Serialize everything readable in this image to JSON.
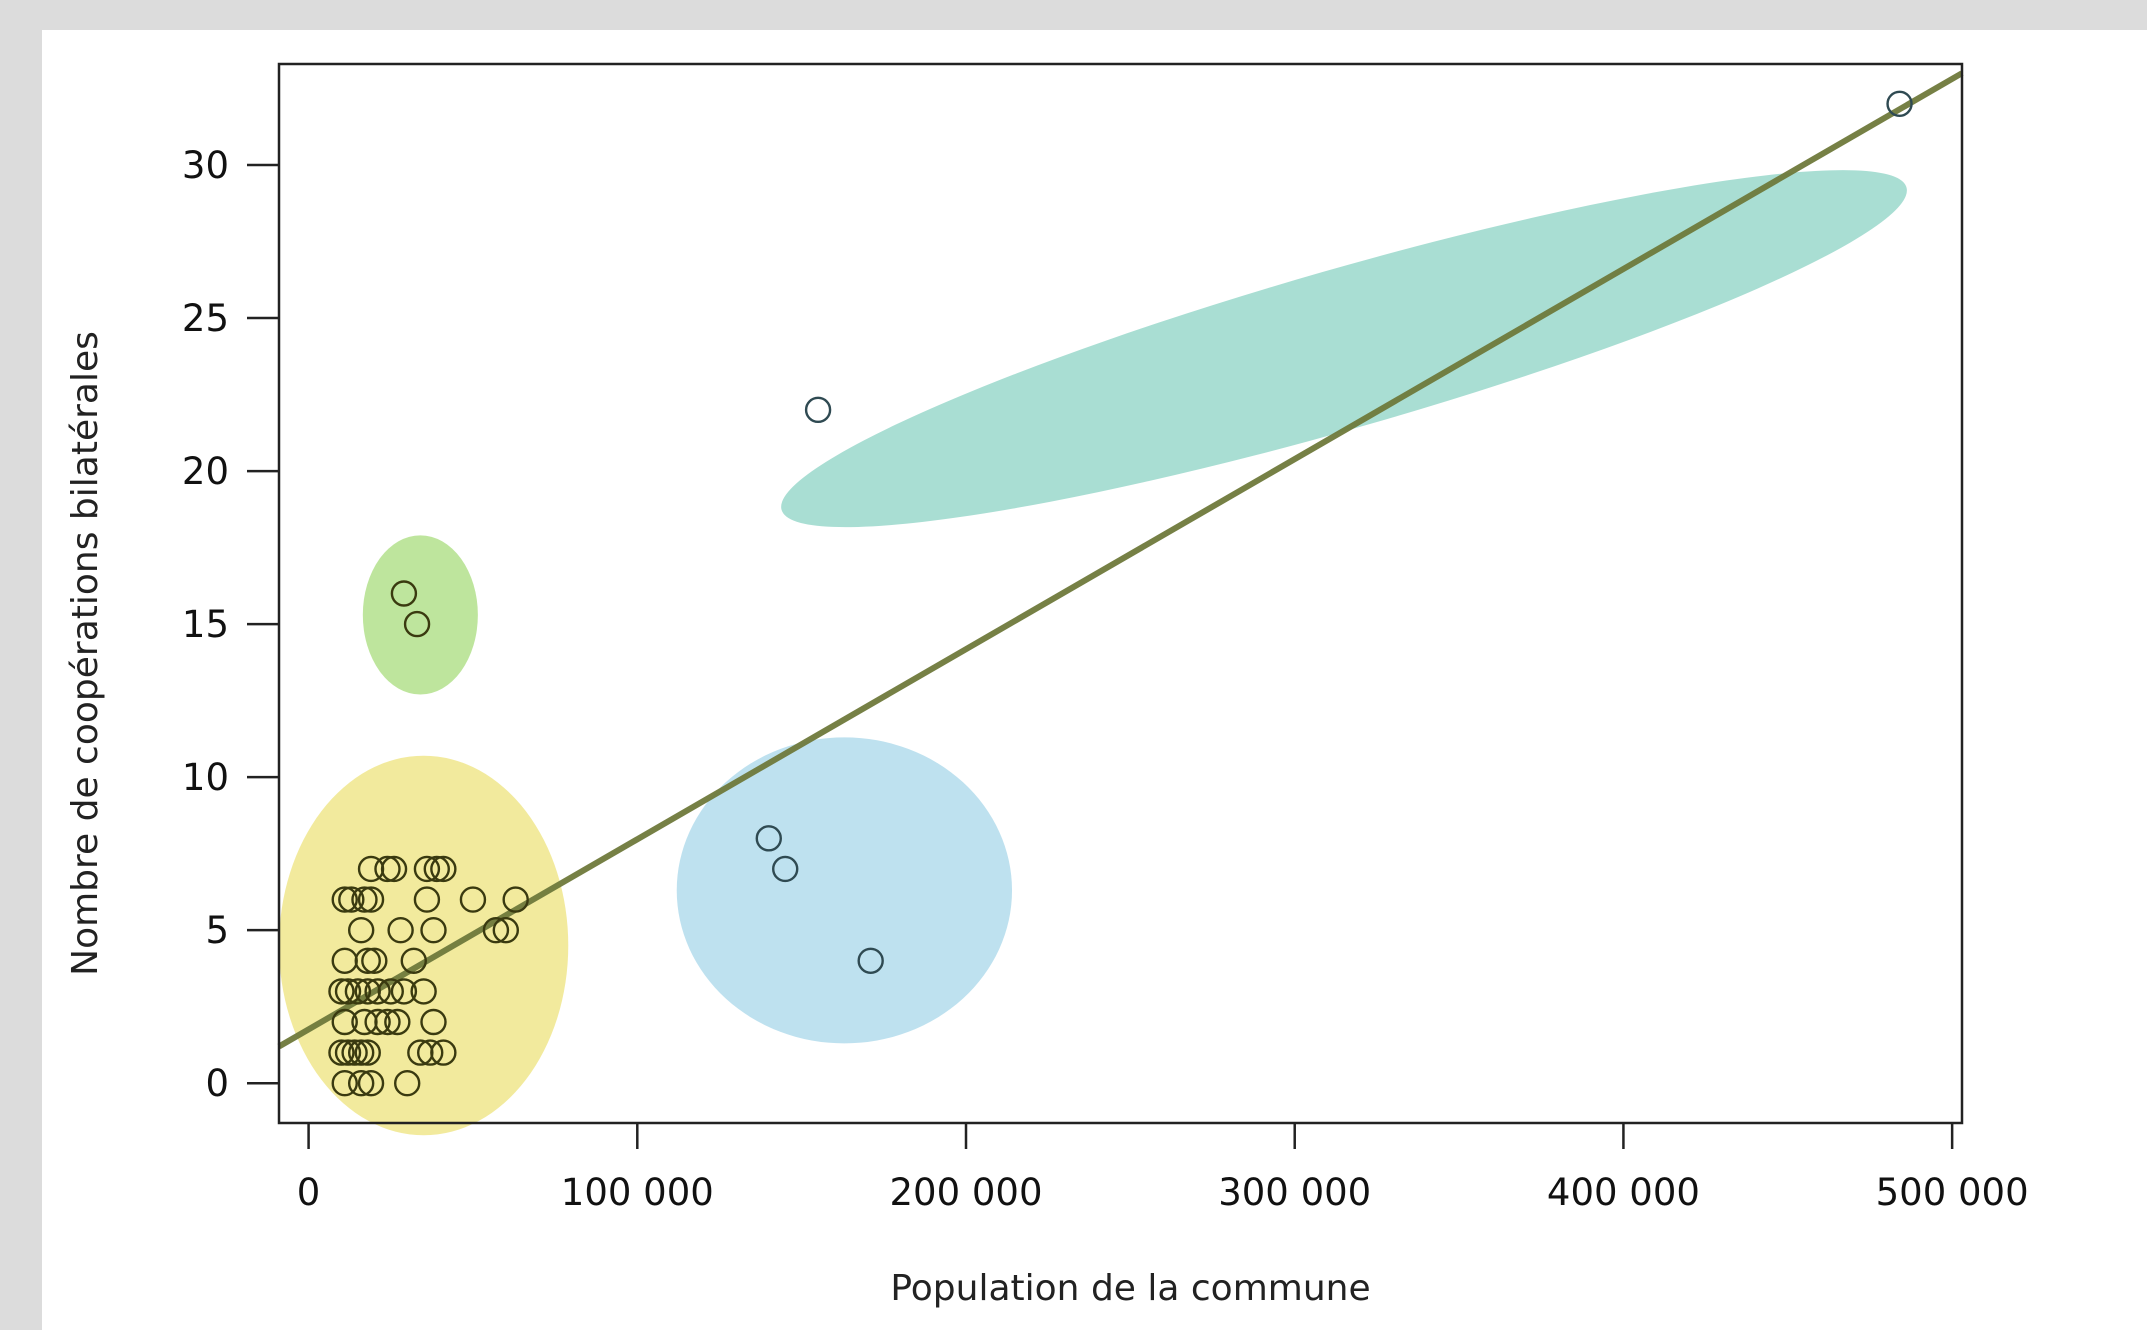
{
  "chart_data": {
    "type": "scatter",
    "title": "",
    "xlabel": "Population de la commune",
    "ylabel": "Nombre de coopérations bilatérales",
    "xlim": [
      -9000,
      503000
    ],
    "ylim": [
      -1.3,
      33.3
    ],
    "x_ticks": [
      0,
      100000,
      200000,
      300000,
      400000,
      500000
    ],
    "x_tick_labels": [
      "0",
      "100 000",
      "200 000",
      "300 000",
      "400 000",
      "500 000"
    ],
    "y_ticks": [
      0,
      5,
      10,
      15,
      20,
      25,
      30
    ],
    "y_tick_labels": [
      "0",
      "5",
      "10",
      "15",
      "20",
      "25",
      "30"
    ],
    "grid": false,
    "trend_line": {
      "from": [
        -9000,
        1.2
      ],
      "to": [
        503000,
        33.0
      ],
      "color": "#6f7a3c"
    },
    "groups": [
      {
        "color": "#f0e68c",
        "cx": 35000,
        "cy": 4.5,
        "rx": 44000,
        "ry": 6.2,
        "angle": 0
      },
      {
        "color": "#b3e08c",
        "cx": 34000,
        "cy": 15.3,
        "rx": 17500,
        "ry": 2.6,
        "angle": 0
      },
      {
        "color": "#b3dcec",
        "cx": 163000,
        "cy": 6.3,
        "rx": 51000,
        "ry": 5.0,
        "angle": 0
      },
      {
        "color": "#9ad8cb",
        "cx": 315000,
        "cy": 24.0,
        "rx": 178000,
        "ry": 2.6,
        "angle": -16
      }
    ],
    "series": [
      {
        "marker_color": "#3a3a10",
        "points": [
          [
            11000,
            6
          ],
          [
            13000,
            6
          ],
          [
            17000,
            6
          ],
          [
            19000,
            6
          ],
          [
            36000,
            6
          ],
          [
            50000,
            6
          ],
          [
            63000,
            6
          ],
          [
            19000,
            7
          ],
          [
            24000,
            7
          ],
          [
            26000,
            7
          ],
          [
            36000,
            7
          ],
          [
            39000,
            7
          ],
          [
            41000,
            7
          ],
          [
            16000,
            5
          ],
          [
            28000,
            5
          ],
          [
            38000,
            5
          ],
          [
            57000,
            5
          ],
          [
            60000,
            5
          ],
          [
            11000,
            4
          ],
          [
            18000,
            4
          ],
          [
            20000,
            4
          ],
          [
            32000,
            4
          ],
          [
            10000,
            3
          ],
          [
            12000,
            3
          ],
          [
            15000,
            3
          ],
          [
            18000,
            3
          ],
          [
            21000,
            3
          ],
          [
            25000,
            3
          ],
          [
            29000,
            3
          ],
          [
            35000,
            3
          ],
          [
            11000,
            2
          ],
          [
            17000,
            2
          ],
          [
            21000,
            2
          ],
          [
            24000,
            2
          ],
          [
            27000,
            2
          ],
          [
            38000,
            2
          ],
          [
            10000,
            1
          ],
          [
            12000,
            1
          ],
          [
            14000,
            1
          ],
          [
            16000,
            1
          ],
          [
            18000,
            1
          ],
          [
            34000,
            1
          ],
          [
            37000,
            1
          ],
          [
            41000,
            1
          ],
          [
            11000,
            0
          ],
          [
            16000,
            0
          ],
          [
            19000,
            0
          ],
          [
            30000,
            0
          ]
        ]
      },
      {
        "marker_color": "#3a3a10",
        "points": [
          [
            29000,
            16
          ],
          [
            33000,
            15
          ]
        ]
      },
      {
        "marker_color": "#2f4a52",
        "points": [
          [
            140000,
            8
          ],
          [
            145000,
            7
          ],
          [
            171000,
            4
          ]
        ]
      },
      {
        "marker_color": "#2f4a52",
        "points": [
          [
            155000,
            22
          ],
          [
            484000,
            32
          ]
        ]
      }
    ]
  }
}
